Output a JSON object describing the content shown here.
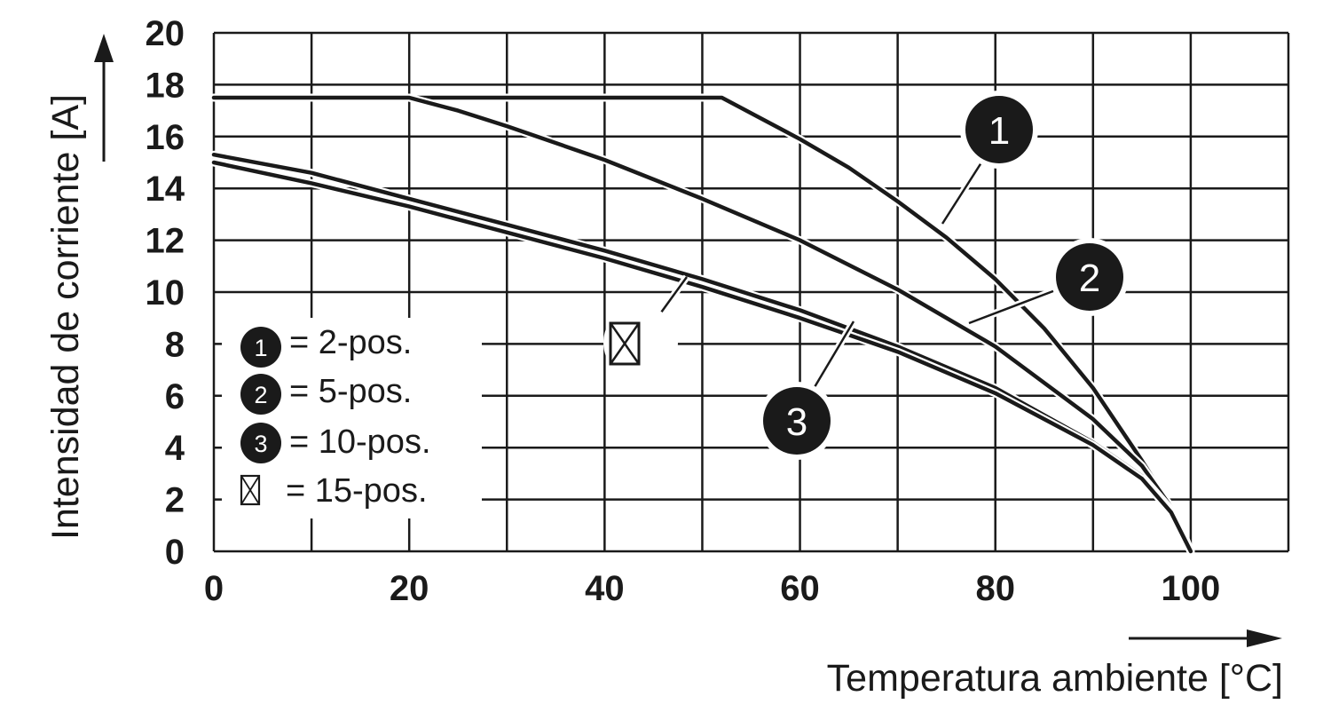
{
  "chart_data": {
    "type": "line",
    "ylabel": "Intensidad de corriente [A]",
    "xlabel": "Temperatura ambiente [°C]",
    "xlim": [
      0,
      110
    ],
    "ylim": [
      0,
      20
    ],
    "x_ticks": [
      "0",
      "20",
      "40",
      "60",
      "80",
      "100"
    ],
    "y_ticks": [
      "0",
      "2",
      "4",
      "6",
      "8",
      "10",
      "12",
      "14",
      "16",
      "18",
      "20"
    ],
    "grid": true,
    "legend_position": "bottom-left",
    "series": [
      {
        "name": "2-pos.",
        "marker": "1",
        "x": [
          0,
          52,
          55,
          60,
          65,
          70,
          75,
          80,
          85,
          90,
          95,
          97,
          99,
          100
        ],
        "y": [
          17.5,
          17.5,
          16.9,
          15.9,
          14.8,
          13.5,
          12.1,
          10.5,
          8.6,
          6.3,
          3.5,
          2.3,
          0.9,
          0
        ]
      },
      {
        "name": "5-pos.",
        "marker": "2",
        "x": [
          0,
          20,
          25,
          30,
          40,
          50,
          60,
          70,
          80,
          90,
          95,
          98,
          100
        ],
        "y": [
          17.5,
          17.5,
          17.0,
          16.4,
          15.1,
          13.6,
          12.0,
          10.1,
          7.9,
          5.1,
          3.3,
          1.7,
          0
        ]
      },
      {
        "name": "10-pos.",
        "marker": "3",
        "x": [
          0,
          10,
          20,
          30,
          40,
          50,
          60,
          70,
          80,
          90,
          95,
          98,
          100
        ],
        "y": [
          15.3,
          14.6,
          13.6,
          12.6,
          11.6,
          10.5,
          9.3,
          7.9,
          6.3,
          4.2,
          2.9,
          1.6,
          0
        ]
      },
      {
        "name": "15-pos.",
        "marker": "box",
        "x": [
          0,
          10,
          20,
          30,
          40,
          50,
          60,
          70,
          80,
          90,
          95,
          98,
          100
        ],
        "y": [
          15.0,
          14.2,
          13.3,
          12.3,
          11.3,
          10.2,
          9.0,
          7.7,
          6.1,
          4.1,
          2.8,
          1.5,
          0
        ]
      }
    ],
    "legend": [
      {
        "marker": "1",
        "label": "= 2-pos."
      },
      {
        "marker": "2",
        "label": "= 5-pos."
      },
      {
        "marker": "3",
        "label": "= 10-pos."
      },
      {
        "marker": "box",
        "label": "= 15-pos."
      }
    ]
  }
}
